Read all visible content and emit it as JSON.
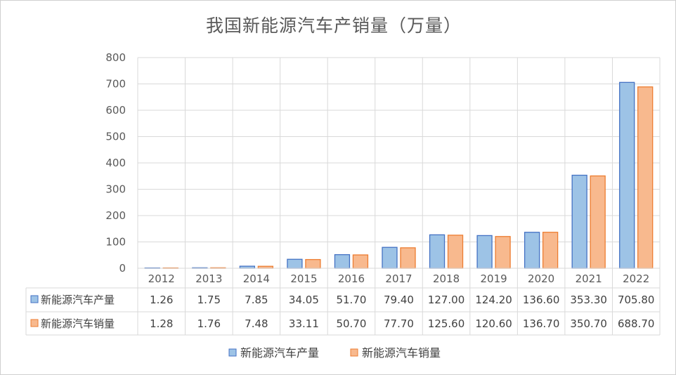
{
  "chart_data": {
    "type": "bar",
    "title": "我国新能源汽车产销量（万量）",
    "categories": [
      "2012",
      "2013",
      "2014",
      "2015",
      "2016",
      "2017",
      "2018",
      "2019",
      "2020",
      "2021",
      "2022"
    ],
    "series": [
      {
        "name": "新能源汽车产量",
        "values": [
          1.26,
          1.75,
          7.85,
          34.05,
          51.7,
          79.4,
          127.0,
          124.2,
          136.6,
          353.3,
          705.8
        ],
        "labels": [
          "1.26",
          "1.75",
          "7.85",
          "34.05",
          "51.70",
          "79.40",
          "127.00",
          "124.20",
          "136.60",
          "353.30",
          "705.80"
        ],
        "color": "#9dc3e6",
        "stroke": "#4472c4"
      },
      {
        "name": "新能源汽车销量",
        "values": [
          1.28,
          1.76,
          7.48,
          33.11,
          50.7,
          77.7,
          125.6,
          120.6,
          136.7,
          350.7,
          688.7
        ],
        "labels": [
          "1.28",
          "1.76",
          "7.48",
          "33.11",
          "50.70",
          "77.70",
          "125.60",
          "120.60",
          "136.70",
          "350.70",
          "688.70"
        ],
        "color": "#f8b98e",
        "stroke": "#ed7d31"
      }
    ],
    "ylim": [
      0,
      800
    ],
    "yticks": [
      "0",
      "100",
      "200",
      "300",
      "400",
      "500",
      "600",
      "700",
      "800"
    ],
    "grid": true,
    "data_table": true,
    "legend": "bottom"
  }
}
